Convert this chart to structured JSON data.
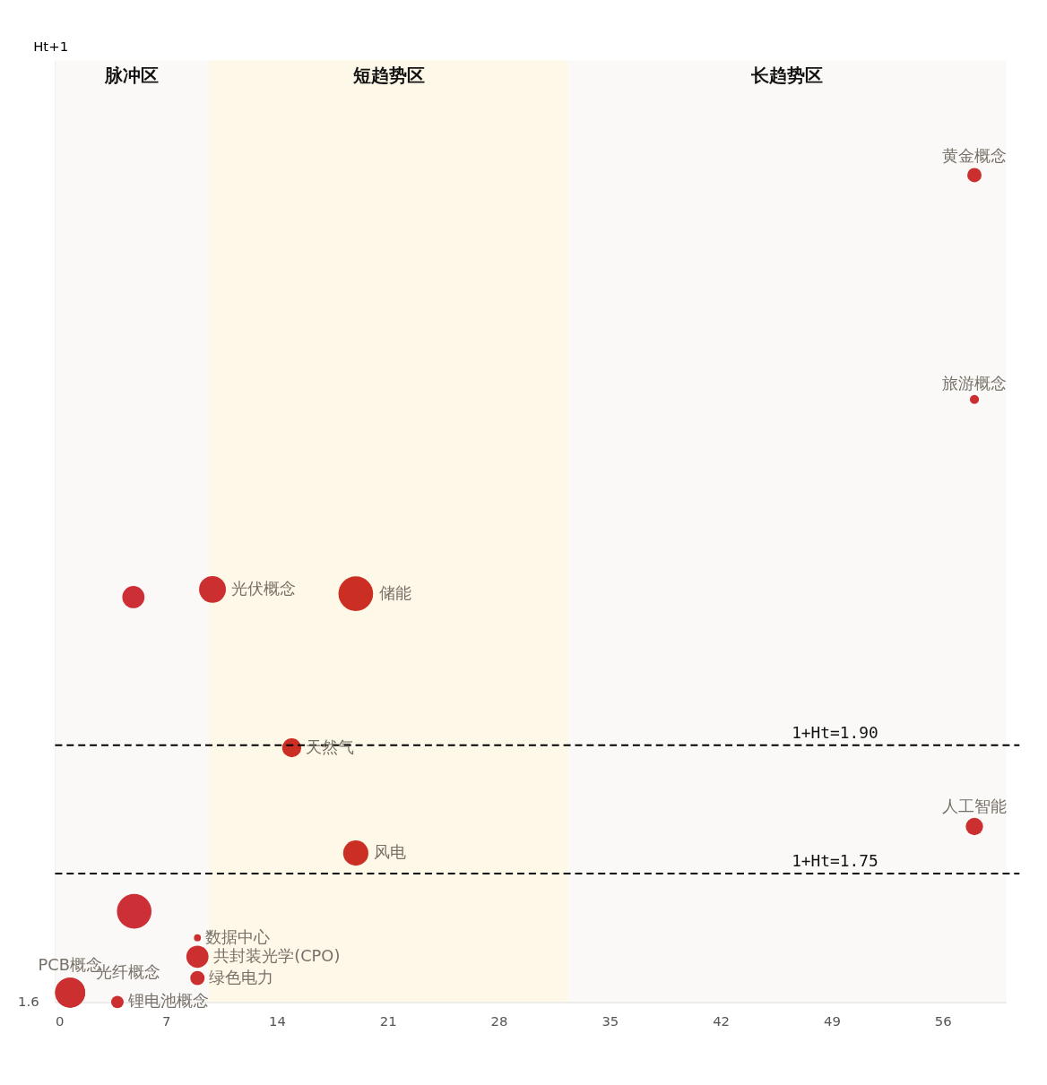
{
  "chart_data": {
    "type": "bubble",
    "ylabel": "Ht+1",
    "xlim": [
      0,
      60
    ],
    "ylim": [
      1.6,
      2.7
    ],
    "xticks": [
      0,
      7,
      14,
      21,
      28,
      35,
      42,
      49,
      56
    ],
    "annotations": [
      {
        "text": "1.6",
        "x": 0,
        "y": 1.6
      }
    ],
    "grid": false,
    "legend": false,
    "bands": [
      {
        "axis": "x",
        "from": 0,
        "to": 9.7,
        "label": "脉冲区",
        "color": "#fbf9f7"
      },
      {
        "axis": "x",
        "from": 9.7,
        "to": 32.4,
        "label": "短趋势区",
        "color": "#fef8e8"
      },
      {
        "axis": "x",
        "from": 32.4,
        "to": 60,
        "label": "长趋势区",
        "color": "#fbf9f7"
      }
    ],
    "ref_lines": [
      {
        "axis": "y",
        "value": 1.9,
        "label": "1+Ht=1.90",
        "line_style": "dashed",
        "color": "#000000"
      },
      {
        "axis": "y",
        "value": 1.75,
        "label": "1+Ht=1.75",
        "line_style": "dashed",
        "color": "#000000"
      }
    ],
    "series": [
      {
        "name": "黄金概念",
        "color": "#cc2f2f",
        "x": [
          58.0
        ],
        "values": [
          2.566
        ],
        "sizes": [
          0.17
        ]
      },
      {
        "name": "旅游概念",
        "color": "#cc2f2f",
        "x": [
          58.0
        ],
        "values": [
          2.304
        ],
        "sizes": [
          0.07
        ]
      },
      {
        "color": "#cc2f35",
        "x": [
          4.94
        ],
        "values": [
          2.073
        ],
        "sizes": [
          0.41
        ]
      },
      {
        "name": "光伏概念",
        "color": "#cc2f2f",
        "x": [
          9.93
        ],
        "values": [
          2.082
        ],
        "sizes": [
          0.6
        ]
      },
      {
        "name": "储能",
        "color": "#cb2e22",
        "x": [
          18.97
        ],
        "values": [
          2.077
        ],
        "sizes": [
          1
        ]
      },
      {
        "name": "天然气",
        "color": "#cb2e22",
        "x": [
          14.93
        ],
        "values": [
          1.897
        ],
        "sizes": [
          0.3
        ]
      },
      {
        "name": "人工智能",
        "color": "#cc2f2f",
        "x": [
          58.0
        ],
        "values": [
          1.805
        ],
        "sizes": [
          0.25
        ]
      },
      {
        "name": "风电",
        "color": "#cb2e22",
        "x": [
          18.97
        ],
        "values": [
          1.774
        ],
        "sizes": [
          0.53
        ]
      },
      {
        "color": "#cc2f35",
        "x": [
          4.99
        ],
        "values": [
          1.706
        ],
        "sizes": [
          1
        ]
      },
      {
        "name": "数据中心",
        "color": "#cc2f2f",
        "x": [
          8.98
        ],
        "values": [
          1.675
        ],
        "sizes": [
          0.04
        ]
      },
      {
        "name": "共封装光学(CPO)",
        "color": "#cc2f2f",
        "x": [
          8.98
        ],
        "values": [
          1.653
        ],
        "sizes": [
          0.41
        ]
      },
      {
        "name": "绿色电力",
        "color": "#cc2f2f",
        "x": [
          8.98
        ],
        "values": [
          1.628
        ],
        "sizes": [
          0.17
        ]
      },
      {
        "name": "PCB概念",
        "color": "#cc2f2f",
        "x": [
          0.95
        ],
        "values": [
          1.611
        ],
        "sizes": [
          0.75
        ]
      },
      {
        "name": "光纤概念",
        "color": "#cc2f2f",
        "x": [
          0.95
        ],
        "values": [
          1.611
        ],
        "sizes": [
          0.75
        ]
      },
      {
        "name": "锂电池概念",
        "color": "#cc2f2f",
        "x": [
          3.93
        ],
        "values": [
          1.6
        ],
        "sizes": [
          0.13
        ]
      }
    ]
  }
}
